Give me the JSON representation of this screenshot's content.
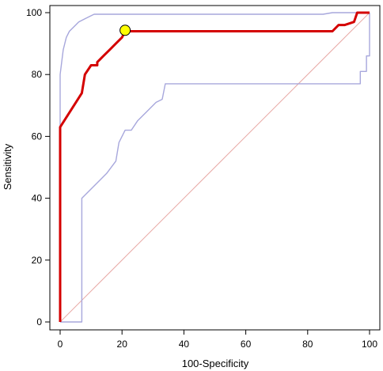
{
  "chart_data": {
    "type": "line",
    "title": "",
    "xlabel": "100-Specificity",
    "ylabel": "Sensitivity",
    "xlim": [
      0,
      100
    ],
    "ylim": [
      0,
      100
    ],
    "x_ticks": [
      0,
      20,
      40,
      60,
      80,
      100
    ],
    "y_ticks": [
      0,
      20,
      40,
      60,
      80,
      100
    ],
    "x_tick_labels": [
      "0",
      "20",
      "40",
      "60",
      "80",
      "100"
    ],
    "y_tick_labels": [
      "0",
      "20",
      "40",
      "60",
      "80",
      "100"
    ],
    "grid": false,
    "legend": "none",
    "series": [
      {
        "role": "roc-curve",
        "color": "#d40000",
        "values": [
          [
            0,
            0
          ],
          [
            0,
            63
          ],
          [
            7,
            74
          ],
          [
            8,
            80
          ],
          [
            10,
            83
          ],
          [
            12,
            83
          ],
          [
            12,
            84
          ],
          [
            14,
            86
          ],
          [
            16,
            88
          ],
          [
            18,
            90
          ],
          [
            20,
            92
          ],
          [
            21,
            94
          ],
          [
            88,
            94
          ],
          [
            90,
            96
          ],
          [
            92,
            96
          ],
          [
            95,
            97
          ],
          [
            96,
            100
          ],
          [
            100,
            100
          ]
        ]
      },
      {
        "role": "confidence-band-upper",
        "color": "#a7a7dc",
        "values": [
          [
            0,
            0
          ],
          [
            0,
            80
          ],
          [
            1,
            88
          ],
          [
            2,
            92
          ],
          [
            3,
            94
          ],
          [
            4,
            95
          ],
          [
            6,
            97
          ],
          [
            8,
            98
          ],
          [
            10,
            99
          ],
          [
            11,
            99.5
          ],
          [
            85,
            99.5
          ],
          [
            88,
            100
          ],
          [
            100,
            100
          ]
        ]
      },
      {
        "role": "confidence-band-lower",
        "color": "#a7a7dc",
        "values": [
          [
            0,
            0
          ],
          [
            7,
            0
          ],
          [
            7,
            40
          ],
          [
            15,
            48
          ],
          [
            18,
            52
          ],
          [
            19,
            58
          ],
          [
            21,
            62
          ],
          [
            23,
            62
          ],
          [
            25,
            65
          ],
          [
            28,
            68
          ],
          [
            31,
            71
          ],
          [
            33,
            72
          ],
          [
            34,
            77
          ],
          [
            97,
            77
          ],
          [
            97,
            81
          ],
          [
            99,
            81
          ],
          [
            99,
            86
          ],
          [
            100,
            86
          ],
          [
            100,
            100
          ]
        ]
      },
      {
        "role": "reference-diagonal",
        "color": "#e8a9a5",
        "values": [
          [
            0,
            0
          ],
          [
            100,
            100
          ]
        ]
      }
    ],
    "optimal_point": {
      "x": 21,
      "y": 94.3,
      "color": "#ffff00"
    }
  }
}
